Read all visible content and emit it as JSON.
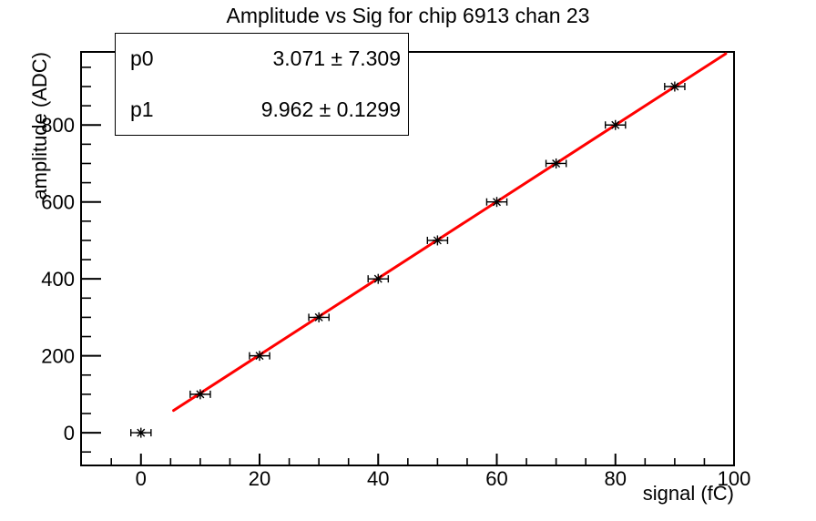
{
  "title": "Amplitude vs Sig for chip 6913 chan 23",
  "stats_box": {
    "rows": [
      {
        "label": "p0",
        "value": "3.071 ± 7.309"
      },
      {
        "label": "p1",
        "value": "9.962 ± 0.1299"
      }
    ]
  },
  "chart_data": {
    "type": "scatter",
    "title": "Amplitude vs Sig for chip 6913 chan 23",
    "xlabel": "signal (fC)",
    "ylabel": "amplitude (ADC)",
    "xlim": [
      -10.1,
      100
    ],
    "ylim": [
      -85,
      990
    ],
    "x_ticks": [
      0,
      20,
      40,
      60,
      80,
      100
    ],
    "y_ticks": [
      0,
      200,
      400,
      600,
      800
    ],
    "x_minor_step": 5,
    "y_minor_step": 50,
    "grid": false,
    "legend_position": "none",
    "background_color": "#ffffff",
    "axis_color": "#000000",
    "series": [
      {
        "name": "measured amplitude",
        "marker": "star",
        "color": "#000000",
        "xerr": 1.7,
        "x": [
          0,
          10,
          20,
          30,
          40,
          50,
          60,
          70,
          80,
          90
        ],
        "y": [
          0,
          100,
          200,
          300,
          400,
          500,
          600,
          700,
          800,
          900
        ]
      }
    ],
    "fit": {
      "name": "linear fit",
      "type": "pol1",
      "color": "#ff0000",
      "p0": 3.071,
      "p0_err": 7.309,
      "p1": 9.962,
      "p1_err": 0.1299,
      "x_start": 5.5,
      "x_end": 98.6
    }
  }
}
